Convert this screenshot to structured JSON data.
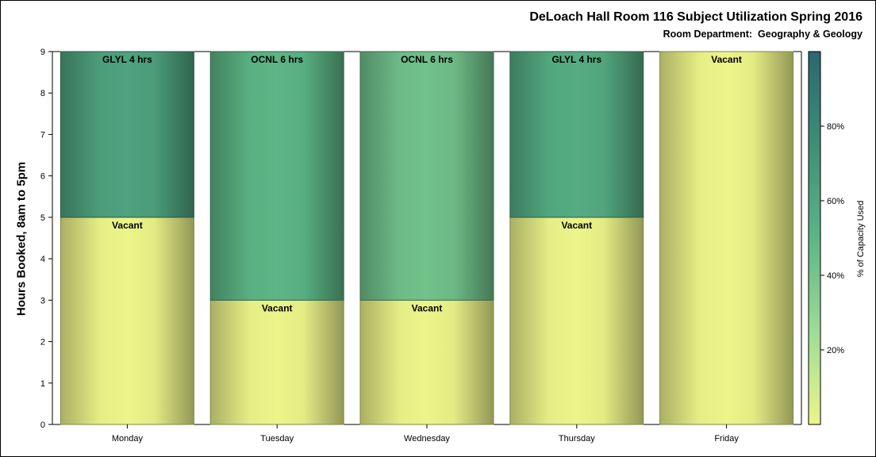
{
  "chart_data": {
    "type": "bar",
    "stacked": true,
    "title": "DeLoach Hall Room 116 Subject Utilization Spring 2016",
    "subtitle": "Room Department:  Geography & Geology",
    "xlabel": "",
    "ylabel": "Hours Booked, 8am to 5pm",
    "ylim": [
      0,
      9
    ],
    "yticks": [
      0,
      1,
      2,
      3,
      4,
      5,
      6,
      7,
      8,
      9
    ],
    "categories": [
      "Monday",
      "Tuesday",
      "Wednesday",
      "Thursday",
      "Friday"
    ],
    "bars": [
      {
        "category": "Monday",
        "segments": [
          {
            "label": "Vacant",
            "from": 0,
            "to": 5,
            "capacity_pct": 0
          },
          {
            "label": "GLYL 4 hrs",
            "from": 5,
            "to": 9,
            "capacity_pct": 62
          }
        ]
      },
      {
        "category": "Tuesday",
        "segments": [
          {
            "label": "Vacant",
            "from": 0,
            "to": 3,
            "capacity_pct": 0
          },
          {
            "label": "OCNL 6 hrs",
            "from": 3,
            "to": 9,
            "capacity_pct": 50
          }
        ]
      },
      {
        "category": "Wednesday",
        "segments": [
          {
            "label": "Vacant",
            "from": 0,
            "to": 3,
            "capacity_pct": 0
          },
          {
            "label": "OCNL 6 hrs",
            "from": 3,
            "to": 9,
            "capacity_pct": 42
          }
        ]
      },
      {
        "category": "Thursday",
        "segments": [
          {
            "label": "Vacant",
            "from": 0,
            "to": 5,
            "capacity_pct": 0
          },
          {
            "label": "GLYL 4 hrs",
            "from": 5,
            "to": 9,
            "capacity_pct": 56
          }
        ]
      },
      {
        "category": "Friday",
        "segments": [
          {
            "label": "Vacant",
            "from": 0,
            "to": 9,
            "capacity_pct": 0
          }
        ]
      }
    ],
    "colorbar": {
      "label": "% of Capacity Used",
      "range": [
        0,
        100
      ],
      "ticks": [
        20,
        40,
        60,
        80
      ],
      "tick_labels": [
        "20%",
        "40%",
        "60%",
        "80%"
      ],
      "colors": [
        "#ecf58a",
        "#9edc96",
        "#5cb586",
        "#3f8e76",
        "#2a6870"
      ]
    },
    "grid": false,
    "legend": "colorbar-right"
  }
}
